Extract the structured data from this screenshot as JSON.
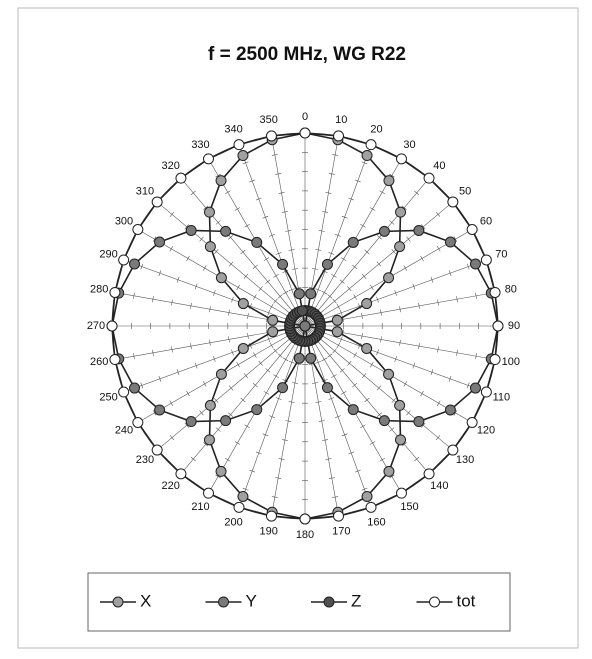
{
  "chart_data": {
    "type": "polar",
    "title": "f = 2500 MHz, WG R22",
    "categories": [
      0,
      10,
      20,
      30,
      40,
      50,
      60,
      70,
      80,
      90,
      100,
      110,
      120,
      130,
      140,
      150,
      160,
      170,
      180,
      190,
      200,
      210,
      220,
      230,
      240,
      250,
      260,
      270,
      280,
      290,
      300,
      310,
      320,
      330,
      340,
      350
    ],
    "rlim": [
      0,
      1
    ],
    "series": [
      {
        "name": "X",
        "color": "#a0a0a0",
        "values": [
          1,
          0.98,
          0.94,
          0.87,
          0.77,
          0.64,
          0.5,
          0.34,
          0.17,
          0,
          0.17,
          0.34,
          0.5,
          0.64,
          0.77,
          0.87,
          0.94,
          0.98,
          1,
          0.98,
          0.94,
          0.87,
          0.77,
          0.64,
          0.5,
          0.34,
          0.17,
          0,
          0.17,
          0.34,
          0.5,
          0.64,
          0.77,
          0.87,
          0.94,
          0.98
        ]
      },
      {
        "name": "Y",
        "color": "#7a7a7a",
        "values": [
          0,
          0.17,
          0.34,
          0.5,
          0.64,
          0.77,
          0.87,
          0.94,
          0.98,
          1,
          0.98,
          0.94,
          0.87,
          0.77,
          0.64,
          0.5,
          0.34,
          0.17,
          0,
          0.17,
          0.34,
          0.5,
          0.64,
          0.77,
          0.87,
          0.94,
          0.98,
          1,
          0.98,
          0.94,
          0.87,
          0.77,
          0.64,
          0.5,
          0.34,
          0.17
        ]
      },
      {
        "name": "Z",
        "color": "#505050",
        "values": [
          0.08,
          0.08,
          0.08,
          0.08,
          0.08,
          0.08,
          0.08,
          0.08,
          0.08,
          0.08,
          0.08,
          0.08,
          0.08,
          0.08,
          0.08,
          0.08,
          0.08,
          0.08,
          0.08,
          0.08,
          0.08,
          0.08,
          0.08,
          0.08,
          0.08,
          0.08,
          0.08,
          0.08,
          0.08,
          0.08,
          0.08,
          0.08,
          0.08,
          0.08,
          0.08,
          0.08
        ]
      },
      {
        "name": "tot",
        "color": "#ffffff",
        "values": [
          1,
          1,
          1,
          1,
          1,
          1,
          1,
          1,
          1,
          1,
          1,
          1,
          1,
          1,
          1,
          1,
          1,
          1,
          1,
          1,
          1,
          1,
          1,
          1,
          1,
          1,
          1,
          1,
          1,
          1,
          1,
          1,
          1,
          1,
          1,
          1
        ]
      }
    ],
    "legend": "bottom"
  }
}
